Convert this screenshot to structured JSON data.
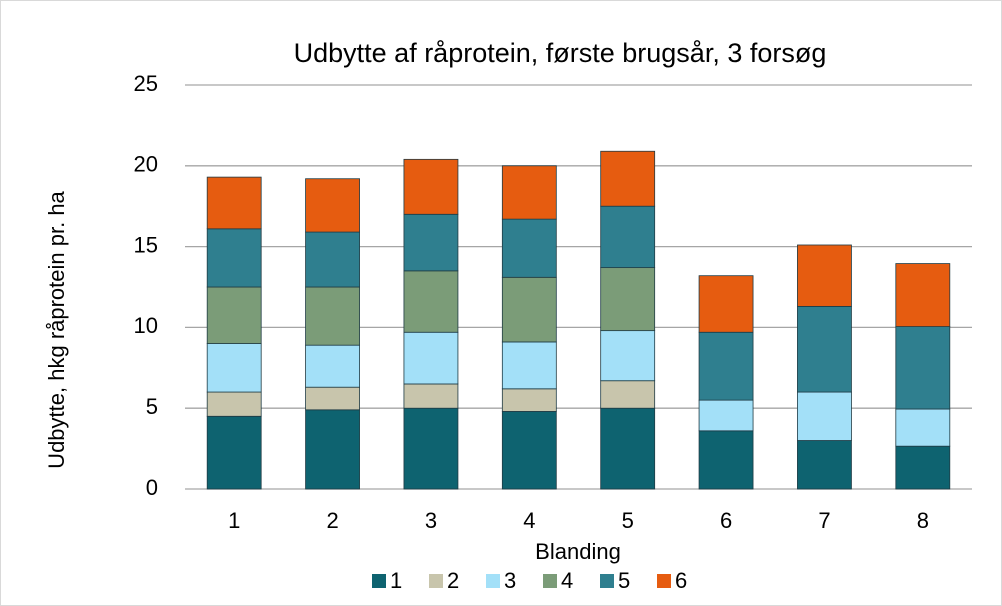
{
  "chart_data": {
    "type": "stacked_bar",
    "title": "Udbytte af råprotein, første brugsår, 3 forsøg",
    "xlabel": "Blanding",
    "ylabel": "Udbytte, hkg råprotein pr. ha",
    "categories": [
      "1",
      "2",
      "3",
      "4",
      "5",
      "6",
      "7",
      "8"
    ],
    "series": [
      {
        "name": "1",
        "color": "#0e6370",
        "values": [
          4.5,
          4.9,
          5.0,
          4.8,
          5.0,
          3.6,
          3.0,
          2.65
        ]
      },
      {
        "name": "2",
        "color": "#c8c5ac",
        "values": [
          1.5,
          1.4,
          1.5,
          1.4,
          1.7,
          0,
          0,
          0
        ]
      },
      {
        "name": "3",
        "color": "#a3e0f8",
        "values": [
          3.0,
          2.6,
          3.2,
          2.9,
          3.1,
          1.9,
          3.0,
          2.3
        ]
      },
      {
        "name": "4",
        "color": "#7b9c78",
        "values": [
          3.5,
          3.6,
          3.8,
          4.0,
          3.9,
          0,
          0,
          0
        ]
      },
      {
        "name": "5",
        "color": "#2f7f8f",
        "values": [
          3.6,
          3.4,
          3.5,
          3.6,
          3.8,
          4.2,
          5.3,
          5.1
        ]
      },
      {
        "name": "6",
        "color": "#e65c10",
        "values": [
          3.2,
          3.3,
          3.4,
          3.3,
          3.4,
          3.5,
          3.8,
          3.9
        ]
      }
    ],
    "ylim": [
      0,
      25
    ],
    "yticks": [
      0,
      5,
      10,
      15,
      20,
      25
    ],
    "grid": true,
    "legend": "bottom"
  }
}
